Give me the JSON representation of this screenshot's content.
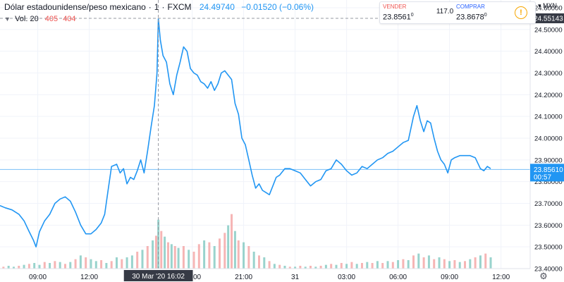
{
  "header": {
    "symbol_name": "Dólar estadounidense/peso mexicano",
    "interval": "1",
    "exchange": "FXCM",
    "last_value": "24.49740",
    "change": "−0.01520 (−0.06%)",
    "separator": "·"
  },
  "volume": {
    "label": "Vol. 20",
    "value_up": "405",
    "value_down": "404"
  },
  "trade": {
    "sell_label": "VENDER",
    "sell_price_main": "23.856",
    "sell_price_big": "1",
    "sell_price_sup": "0",
    "spread": "117.0",
    "buy_label": "COMPRAR",
    "buy_price_main": "23.867",
    "buy_price_big": "8",
    "buy_price_sup": "0",
    "info_icon": "!"
  },
  "currency": {
    "label": "MXN",
    "chevron": "▾"
  },
  "colors": {
    "line": "#2196f3",
    "vol_up": "#7fc8c1",
    "vol_down": "#f4a3a3",
    "sell": "#ef5350",
    "buy": "#2962ff",
    "change": "#2196f3",
    "grid": "#f0f3fa"
  },
  "chart_data": {
    "type": "line",
    "y_axis": {
      "side": "right",
      "ticks": [
        "24.60000",
        "24.50000",
        "24.40000",
        "24.30000",
        "24.20000",
        "24.10000",
        "24.00000",
        "23.90000",
        "23.80000",
        "23.70000",
        "23.60000",
        "23.50000",
        "23.40000"
      ],
      "tick_values": [
        24.6,
        24.5,
        24.4,
        24.3,
        24.2,
        24.1,
        24.0,
        23.9,
        23.8,
        23.7,
        23.6,
        23.5,
        23.4
      ],
      "ylim": [
        23.4,
        24.6
      ]
    },
    "x_axis": {
      "labels": [
        {
          "t": 9,
          "text": "09:00"
        },
        {
          "t": 12,
          "text": "12:00"
        },
        {
          "t": 18,
          "text": "18:00"
        },
        {
          "t": 21,
          "text": "21:00"
        },
        {
          "t": 24,
          "text": "31"
        },
        {
          "t": 27,
          "text": "03:00"
        },
        {
          "t": 30,
          "text": "06:00"
        },
        {
          "t": 33,
          "text": "09:00"
        },
        {
          "t": 36,
          "text": "12:00"
        }
      ],
      "crosshair": {
        "t": 16.03,
        "text": "30 Mar '20  16:02"
      },
      "xlim": [
        6.8,
        37.7
      ]
    },
    "crosshair_price": "24.55143",
    "last_price": "23.85610",
    "countdown": "00:57",
    "series": [
      {
        "points": [
          [
            6.8,
            23.69
          ],
          [
            7.1,
            23.68
          ],
          [
            7.5,
            23.67
          ],
          [
            7.9,
            23.65
          ],
          [
            8.2,
            23.62
          ],
          [
            8.5,
            23.57
          ],
          [
            8.75,
            23.53
          ],
          [
            8.9,
            23.5
          ],
          [
            9.1,
            23.57
          ],
          [
            9.4,
            23.62
          ],
          [
            9.7,
            23.65
          ],
          [
            10.0,
            23.7
          ],
          [
            10.3,
            23.72
          ],
          [
            10.6,
            23.73
          ],
          [
            10.9,
            23.71
          ],
          [
            11.2,
            23.66
          ],
          [
            11.5,
            23.6
          ],
          [
            11.8,
            23.56
          ],
          [
            12.1,
            23.56
          ],
          [
            12.4,
            23.58
          ],
          [
            12.7,
            23.61
          ],
          [
            12.9,
            23.65
          ],
          [
            13.1,
            23.76
          ],
          [
            13.3,
            23.87
          ],
          [
            13.6,
            23.88
          ],
          [
            13.8,
            23.84
          ],
          [
            14.0,
            23.86
          ],
          [
            14.2,
            23.79
          ],
          [
            14.4,
            23.82
          ],
          [
            14.6,
            23.81
          ],
          [
            14.8,
            23.85
          ],
          [
            15.0,
            23.9
          ],
          [
            15.2,
            23.84
          ],
          [
            15.4,
            23.94
          ],
          [
            15.6,
            24.05
          ],
          [
            15.8,
            24.15
          ],
          [
            15.95,
            24.3
          ],
          [
            16.03,
            24.55
          ],
          [
            16.15,
            24.45
          ],
          [
            16.3,
            24.38
          ],
          [
            16.5,
            24.35
          ],
          [
            16.7,
            24.25
          ],
          [
            16.9,
            24.2
          ],
          [
            17.1,
            24.29
          ],
          [
            17.3,
            24.35
          ],
          [
            17.5,
            24.42
          ],
          [
            17.7,
            24.4
          ],
          [
            17.9,
            24.32
          ],
          [
            18.1,
            24.3
          ],
          [
            18.3,
            24.29
          ],
          [
            18.5,
            24.26
          ],
          [
            18.7,
            24.25
          ],
          [
            18.9,
            24.23
          ],
          [
            19.1,
            24.26
          ],
          [
            19.3,
            24.22
          ],
          [
            19.5,
            24.25
          ],
          [
            19.7,
            24.3
          ],
          [
            19.9,
            24.31
          ],
          [
            20.1,
            24.29
          ],
          [
            20.3,
            24.27
          ],
          [
            20.5,
            24.16
          ],
          [
            20.7,
            24.11
          ],
          [
            20.9,
            24.0
          ],
          [
            21.1,
            23.97
          ],
          [
            21.3,
            23.9
          ],
          [
            21.5,
            23.83
          ],
          [
            21.7,
            23.77
          ],
          [
            21.9,
            23.79
          ],
          [
            22.1,
            23.76
          ],
          [
            22.3,
            23.75
          ],
          [
            22.5,
            23.74
          ],
          [
            22.7,
            23.78
          ],
          [
            22.9,
            23.82
          ],
          [
            23.1,
            23.83
          ],
          [
            23.4,
            23.86
          ],
          [
            23.7,
            23.86
          ],
          [
            24.0,
            23.85
          ],
          [
            24.3,
            23.84
          ],
          [
            24.6,
            23.81
          ],
          [
            24.9,
            23.78
          ],
          [
            25.2,
            23.8
          ],
          [
            25.5,
            23.81
          ],
          [
            25.8,
            23.85
          ],
          [
            26.1,
            23.86
          ],
          [
            26.4,
            23.9
          ],
          [
            26.7,
            23.88
          ],
          [
            27.0,
            23.85
          ],
          [
            27.3,
            23.83
          ],
          [
            27.6,
            23.84
          ],
          [
            27.9,
            23.87
          ],
          [
            28.2,
            23.86
          ],
          [
            28.5,
            23.88
          ],
          [
            28.8,
            23.9
          ],
          [
            29.1,
            23.91
          ],
          [
            29.4,
            23.93
          ],
          [
            29.7,
            23.94
          ],
          [
            30.0,
            23.96
          ],
          [
            30.3,
            23.98
          ],
          [
            30.6,
            23.99
          ],
          [
            30.9,
            24.1
          ],
          [
            31.1,
            24.15
          ],
          [
            31.3,
            24.08
          ],
          [
            31.5,
            24.03
          ],
          [
            31.7,
            24.08
          ],
          [
            31.9,
            24.07
          ],
          [
            32.1,
            24.0
          ],
          [
            32.3,
            23.94
          ],
          [
            32.5,
            23.9
          ],
          [
            32.7,
            23.88
          ],
          [
            32.9,
            23.84
          ],
          [
            33.1,
            23.9
          ],
          [
            33.3,
            23.91
          ],
          [
            33.6,
            23.92
          ],
          [
            33.9,
            23.92
          ],
          [
            34.2,
            23.92
          ],
          [
            34.5,
            23.91
          ],
          [
            34.8,
            23.86
          ],
          [
            35.0,
            23.85
          ],
          [
            35.2,
            23.87
          ],
          [
            35.4,
            23.86
          ]
        ]
      }
    ],
    "volume_bars": [
      [
        7.0,
        2,
        "d"
      ],
      [
        7.3,
        3,
        "u"
      ],
      [
        7.6,
        2,
        "u"
      ],
      [
        7.9,
        3,
        "d"
      ],
      [
        8.2,
        4,
        "u"
      ],
      [
        8.5,
        5,
        "d"
      ],
      [
        8.8,
        6,
        "u"
      ],
      [
        9.1,
        4,
        "u"
      ],
      [
        9.4,
        7,
        "d"
      ],
      [
        9.7,
        6,
        "u"
      ],
      [
        10.0,
        8,
        "d"
      ],
      [
        10.3,
        7,
        "u"
      ],
      [
        10.6,
        5,
        "d"
      ],
      [
        10.9,
        7,
        "u"
      ],
      [
        11.2,
        10,
        "d"
      ],
      [
        11.5,
        14,
        "u"
      ],
      [
        11.8,
        12,
        "d"
      ],
      [
        12.1,
        10,
        "u"
      ],
      [
        12.4,
        8,
        "u"
      ],
      [
        12.7,
        9,
        "d"
      ],
      [
        13.0,
        6,
        "u"
      ],
      [
        13.3,
        8,
        "d"
      ],
      [
        13.6,
        12,
        "u"
      ],
      [
        13.9,
        10,
        "d"
      ],
      [
        14.2,
        12,
        "u"
      ],
      [
        14.5,
        14,
        "u"
      ],
      [
        14.8,
        18,
        "d"
      ],
      [
        15.1,
        20,
        "u"
      ],
      [
        15.4,
        24,
        "d"
      ],
      [
        15.7,
        30,
        "u"
      ],
      [
        15.9,
        35,
        "d"
      ],
      [
        16.03,
        52,
        "u"
      ],
      [
        16.2,
        40,
        "d"
      ],
      [
        16.4,
        34,
        "u"
      ],
      [
        16.6,
        28,
        "d"
      ],
      [
        16.8,
        26,
        "u"
      ],
      [
        17.0,
        24,
        "d"
      ],
      [
        17.2,
        22,
        "u"
      ],
      [
        17.5,
        24,
        "d"
      ],
      [
        17.8,
        20,
        "u"
      ],
      [
        18.1,
        18,
        "d"
      ],
      [
        18.4,
        26,
        "d"
      ],
      [
        18.7,
        30,
        "u"
      ],
      [
        19.0,
        28,
        "d"
      ],
      [
        19.3,
        24,
        "u"
      ],
      [
        19.6,
        32,
        "d"
      ],
      [
        19.9,
        38,
        "d"
      ],
      [
        20.1,
        46,
        "u"
      ],
      [
        20.3,
        58,
        "d"
      ],
      [
        20.5,
        40,
        "u"
      ],
      [
        20.7,
        30,
        "d"
      ],
      [
        21.0,
        28,
        "u"
      ],
      [
        21.3,
        24,
        "d"
      ],
      [
        21.6,
        18,
        "u"
      ],
      [
        21.9,
        14,
        "d"
      ],
      [
        22.2,
        12,
        "u"
      ],
      [
        22.5,
        8,
        "d"
      ],
      [
        22.8,
        5,
        "u"
      ],
      [
        23.1,
        4,
        "d"
      ],
      [
        23.4,
        3,
        "u"
      ],
      [
        23.7,
        2,
        "d"
      ],
      [
        24.0,
        2,
        "u"
      ],
      [
        24.3,
        3,
        "d"
      ],
      [
        24.6,
        2,
        "u"
      ],
      [
        24.9,
        3,
        "d"
      ],
      [
        25.2,
        2,
        "u"
      ],
      [
        25.5,
        3,
        "d"
      ],
      [
        25.8,
        4,
        "u"
      ],
      [
        26.1,
        5,
        "d"
      ],
      [
        26.4,
        4,
        "u"
      ],
      [
        26.7,
        6,
        "d"
      ],
      [
        27.0,
        5,
        "u"
      ],
      [
        27.3,
        7,
        "d"
      ],
      [
        27.6,
        5,
        "u"
      ],
      [
        27.9,
        6,
        "d"
      ],
      [
        28.2,
        7,
        "u"
      ],
      [
        28.5,
        6,
        "d"
      ],
      [
        28.8,
        8,
        "u"
      ],
      [
        29.1,
        6,
        "d"
      ],
      [
        29.4,
        8,
        "u"
      ],
      [
        29.7,
        7,
        "d"
      ],
      [
        30.0,
        9,
        "u"
      ],
      [
        30.3,
        10,
        "d"
      ],
      [
        30.6,
        9,
        "u"
      ],
      [
        30.9,
        14,
        "d"
      ],
      [
        31.2,
        16,
        "u"
      ],
      [
        31.5,
        12,
        "d"
      ],
      [
        31.8,
        14,
        "u"
      ],
      [
        32.1,
        10,
        "d"
      ],
      [
        32.4,
        12,
        "u"
      ],
      [
        32.7,
        10,
        "d"
      ],
      [
        33.0,
        8,
        "u"
      ],
      [
        33.3,
        9,
        "d"
      ],
      [
        33.6,
        7,
        "u"
      ],
      [
        33.9,
        8,
        "d"
      ],
      [
        34.2,
        10,
        "u"
      ],
      [
        34.5,
        12,
        "d"
      ],
      [
        34.8,
        14,
        "u"
      ],
      [
        35.1,
        16,
        "d"
      ],
      [
        35.4,
        12,
        "u"
      ]
    ]
  }
}
